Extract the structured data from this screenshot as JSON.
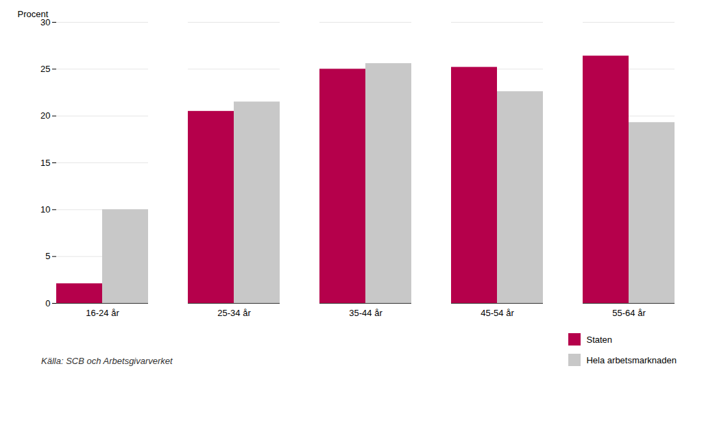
{
  "chart_data": {
    "type": "bar",
    "categories": [
      "16-24 år",
      "25-34 år",
      "35-44 år",
      "45-54 år",
      "55-64 år"
    ],
    "series": [
      {
        "name": "Staten",
        "color": "#b5004b",
        "values": [
          2.1,
          20.5,
          25.0,
          25.2,
          26.4
        ]
      },
      {
        "name": "Hela arbetsmarknaden",
        "color": "#c8c8c8",
        "values": [
          10.0,
          21.5,
          25.6,
          22.6,
          19.3
        ]
      }
    ],
    "ylabel": "Procent",
    "ylim": [
      0,
      30
    ],
    "yticks": [
      0,
      5,
      10,
      15,
      20,
      25,
      30
    ],
    "grid": true,
    "legend": "lower right",
    "annotations": [
      "Källa: SCB och Arbetsgivarverket"
    ]
  }
}
